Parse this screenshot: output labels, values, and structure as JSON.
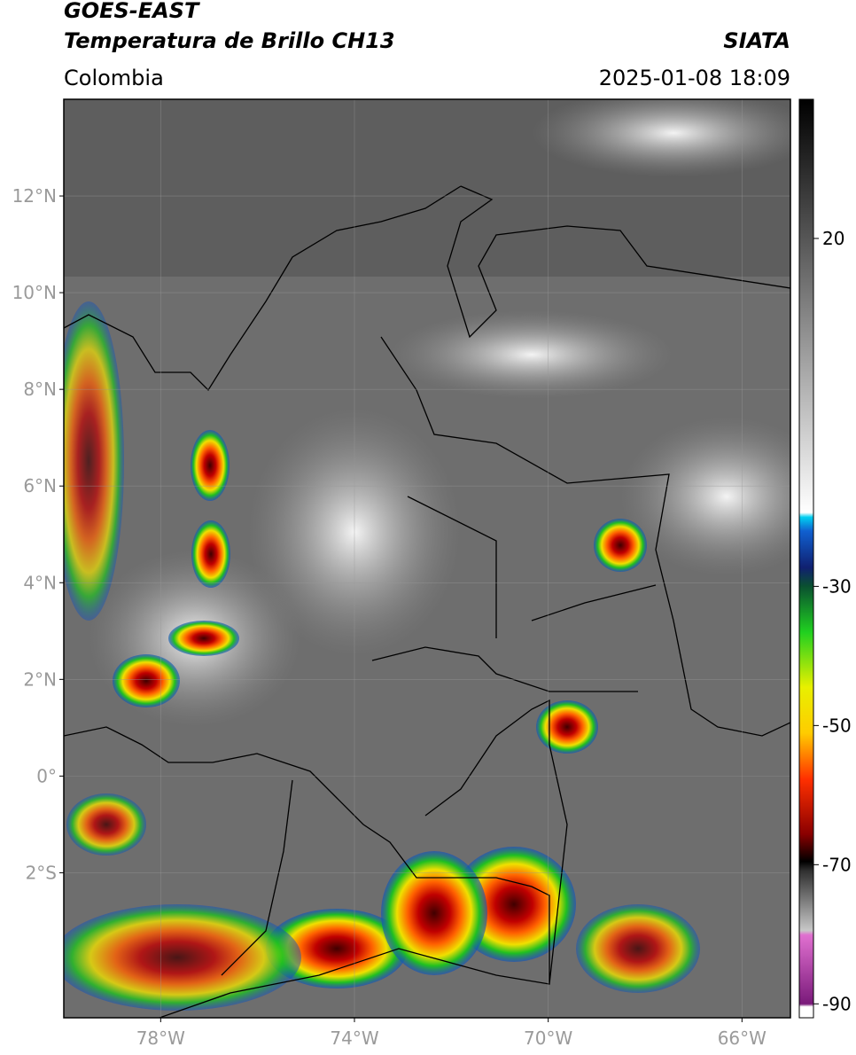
{
  "header": {
    "satellite": "GOES-EAST",
    "title": "Temperatura de Brillo CH13",
    "source": "SIATA",
    "region": "Colombia",
    "datetime": "2025-01-08 18:09"
  },
  "map": {
    "lonlim": [
      -80,
      -65
    ],
    "latlim": [
      -5,
      14
    ],
    "lat_ticks": [
      {
        "value": 12,
        "label": "12°N"
      },
      {
        "value": 10,
        "label": "10°N"
      },
      {
        "value": 8,
        "label": "8°N"
      },
      {
        "value": 6,
        "label": "6°N"
      },
      {
        "value": 4,
        "label": "4°N"
      },
      {
        "value": 2,
        "label": "2°N"
      },
      {
        "value": 0,
        "label": "0°"
      },
      {
        "value": -2,
        "label": "2°S"
      }
    ],
    "lon_ticks": [
      {
        "value": -78,
        "label": "78°W"
      },
      {
        "value": -74,
        "label": "74°W"
      },
      {
        "value": -70,
        "label": "70°W"
      },
      {
        "value": -66,
        "label": "66°W"
      }
    ],
    "grid": true
  },
  "colorbar": {
    "lim": [
      -92,
      40
    ],
    "ticks": [
      20,
      -30,
      -50,
      -70,
      -90
    ]
  }
}
